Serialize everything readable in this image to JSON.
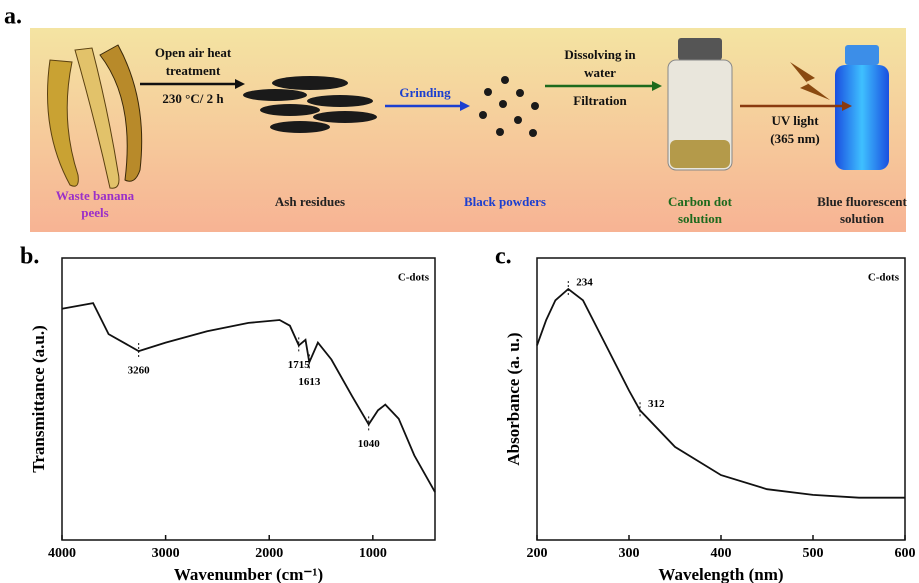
{
  "scheme": {
    "panel_label": "a.",
    "steps": [
      {
        "label": [
          "Waste banana",
          "peels"
        ]
      },
      {
        "label": [
          "Ash residues"
        ]
      },
      {
        "label": [
          "Black powders"
        ]
      },
      {
        "label": [
          "Carbon dot",
          "solution"
        ]
      },
      {
        "label": [
          "Blue fluorescent",
          "solution"
        ]
      }
    ],
    "arrows": [
      {
        "above": [
          "Open air heat",
          "treatment"
        ],
        "below": [
          "230 °C/ 2 h"
        ]
      },
      {
        "above": [
          "Grinding"
        ],
        "below": []
      },
      {
        "above": [
          "Dissolving in",
          "water"
        ],
        "below": [
          "Filtration"
        ]
      },
      {
        "above": [],
        "below": [
          "UV light",
          "(365 nm)"
        ]
      }
    ]
  },
  "chart_data": [
    {
      "type": "line",
      "panel_label": "b.",
      "legend": "C-dots",
      "x_label": "Wavenumber (cm⁻¹)",
      "y_label": "Transmittance (a.u.)",
      "x": [
        4000,
        3700,
        3550,
        3260,
        3000,
        2600,
        2200,
        1900,
        1800,
        1715,
        1650,
        1613,
        1530,
        1400,
        1200,
        1040,
        950,
        880,
        750,
        600,
        400
      ],
      "values": [
        82,
        84,
        73,
        67,
        70,
        74,
        77,
        78,
        76,
        69,
        71,
        63,
        70,
        64,
        51,
        41,
        46,
        48,
        43,
        30,
        17
      ],
      "color": "#111111",
      "xlim": [
        4000,
        400
      ],
      "xticks": [
        4000,
        3000,
        2000,
        1000
      ],
      "ylim": [
        0,
        100
      ],
      "annotations": [
        3260,
        1715,
        1613,
        1040
      ]
    },
    {
      "type": "line",
      "panel_label": "c.",
      "legend": "C-dots",
      "x_label": "Wavelength (nm)",
      "y_label": "Absorbance (a. u.)",
      "x": [
        200,
        210,
        220,
        234,
        250,
        275,
        300,
        312,
        350,
        400,
        450,
        500,
        550,
        600
      ],
      "values": [
        69,
        78,
        85,
        89,
        85,
        69,
        53,
        46,
        33,
        23,
        18,
        16,
        15,
        15
      ],
      "color": "#111111",
      "xlim": [
        200,
        600
      ],
      "xticks": [
        200,
        300,
        400,
        500,
        600
      ],
      "ylim": [
        0,
        100
      ],
      "annotations": [
        234,
        312
      ]
    }
  ]
}
